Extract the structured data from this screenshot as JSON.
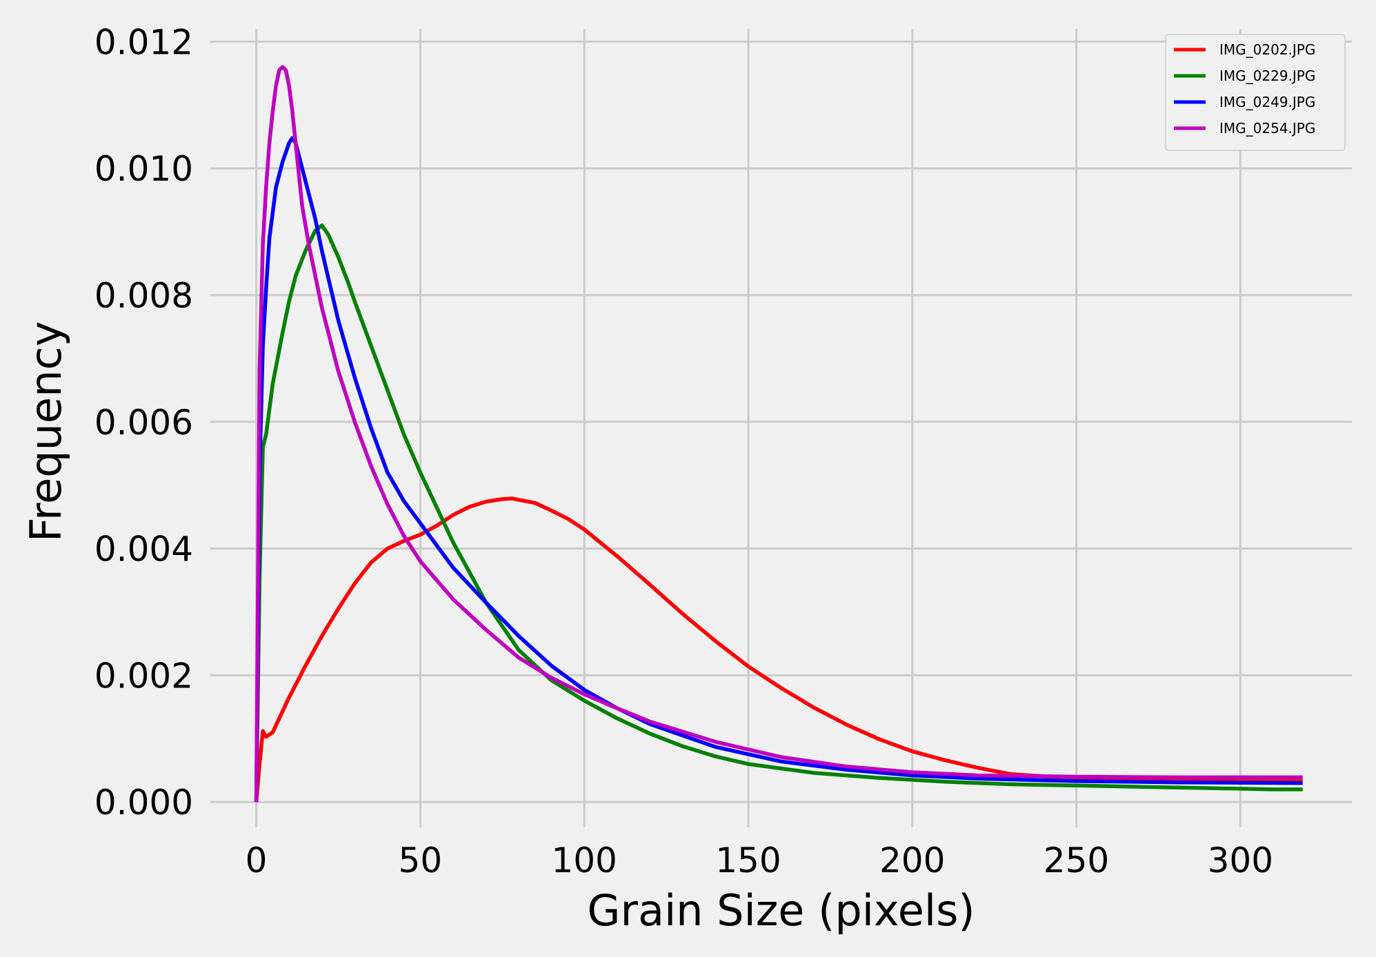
{
  "chart_data": {
    "type": "line",
    "title": "",
    "xlabel": "Grain Size (pixels)",
    "ylabel": "Frequency",
    "xlim": [
      -14,
      334
    ],
    "ylim": [
      -0.0004,
      0.0122
    ],
    "xticks": [
      0,
      50,
      100,
      150,
      200,
      250,
      300
    ],
    "xtick_labels": [
      "0",
      "50",
      "100",
      "150",
      "200",
      "250",
      "300"
    ],
    "yticks": [
      0.0,
      0.002,
      0.004,
      0.006,
      0.008,
      0.01,
      0.012
    ],
    "ytick_labels": [
      "0.000",
      "0.002",
      "0.004",
      "0.006",
      "0.008",
      "0.010",
      "0.012"
    ],
    "grid": true,
    "legend_position": "top-right",
    "series": [
      {
        "name": "IMG_0202.JPG",
        "color": "#ff0000",
        "x": [
          0,
          1,
          2,
          3,
          5,
          10,
          15,
          20,
          25,
          30,
          35,
          40,
          45,
          50,
          55,
          60,
          65,
          70,
          75,
          78,
          80,
          85,
          90,
          95,
          100,
          110,
          120,
          130,
          140,
          150,
          160,
          170,
          180,
          190,
          200,
          210,
          220,
          230,
          250,
          270,
          290,
          300,
          310,
          319
        ],
        "y": [
          0.0,
          0.0006,
          0.00112,
          0.00103,
          0.0011,
          0.00165,
          0.00215,
          0.00262,
          0.00305,
          0.00345,
          0.00378,
          0.004,
          0.00412,
          0.00422,
          0.00436,
          0.00453,
          0.00466,
          0.00474,
          0.00478,
          0.00479,
          0.00477,
          0.00472,
          0.0046,
          0.00447,
          0.0043,
          0.00388,
          0.00343,
          0.00297,
          0.00254,
          0.00214,
          0.0018,
          0.00149,
          0.00122,
          0.00099,
          0.0008,
          0.00066,
          0.00054,
          0.00044,
          0.00037,
          0.00035,
          0.00034,
          0.00033,
          0.00033,
          0.00033
        ]
      },
      {
        "name": "IMG_0229.JPG",
        "color": "#008000",
        "x": [
          0,
          1,
          2,
          3,
          5,
          8,
          10,
          12,
          15,
          18,
          20,
          22,
          25,
          28,
          30,
          35,
          40,
          45,
          50,
          60,
          70,
          80,
          90,
          100,
          110,
          120,
          130,
          140,
          150,
          170,
          190,
          210,
          230,
          250,
          270,
          290,
          310,
          319
        ],
        "y": [
          0.0,
          0.0035,
          0.0056,
          0.0058,
          0.0066,
          0.0074,
          0.0079,
          0.0083,
          0.0087,
          0.00902,
          0.0091,
          0.00895,
          0.0086,
          0.0082,
          0.0079,
          0.0072,
          0.0065,
          0.0058,
          0.0052,
          0.0041,
          0.00315,
          0.0024,
          0.00192,
          0.0016,
          0.00132,
          0.00108,
          0.00088,
          0.00072,
          0.0006,
          0.00046,
          0.00038,
          0.00032,
          0.00028,
          0.00026,
          0.00024,
          0.00022,
          0.0002,
          0.0002
        ]
      },
      {
        "name": "IMG_0249.JPG",
        "color": "#0000ff",
        "x": [
          0,
          1,
          2,
          3,
          4,
          6,
          8,
          10,
          11,
          12,
          13,
          15,
          18,
          20,
          25,
          30,
          35,
          40,
          45,
          50,
          60,
          70,
          80,
          90,
          100,
          110,
          120,
          140,
          160,
          180,
          200,
          220,
          250,
          280,
          319
        ],
        "y": [
          0.0,
          0.0052,
          0.0072,
          0.0081,
          0.0089,
          0.0097,
          0.0101,
          0.0104,
          0.01048,
          0.0104,
          0.0102,
          0.0098,
          0.0092,
          0.0087,
          0.0076,
          0.0067,
          0.0059,
          0.0052,
          0.00475,
          0.0044,
          0.0037,
          0.00315,
          0.00262,
          0.00215,
          0.00177,
          0.00148,
          0.00123,
          0.00087,
          0.00064,
          0.00051,
          0.00042,
          0.00037,
          0.00033,
          0.00031,
          0.0003
        ]
      },
      {
        "name": "IMG_0254.JPG",
        "color": "#bf00bf",
        "x": [
          0,
          1,
          2,
          3,
          4,
          5,
          6,
          7,
          8,
          9,
          10,
          11,
          12,
          13,
          14,
          16,
          18,
          20,
          25,
          30,
          35,
          40,
          45,
          50,
          60,
          70,
          80,
          90,
          100,
          110,
          120,
          140,
          160,
          180,
          200,
          220,
          250,
          280,
          319
        ],
        "y": [
          0.0,
          0.0068,
          0.0088,
          0.0097,
          0.0104,
          0.0109,
          0.0113,
          0.01155,
          0.0116,
          0.01155,
          0.0113,
          0.0109,
          0.0104,
          0.0099,
          0.0094,
          0.0088,
          0.0083,
          0.0078,
          0.0068,
          0.006,
          0.0053,
          0.0047,
          0.0042,
          0.0038,
          0.0032,
          0.00272,
          0.00228,
          0.00196,
          0.0017,
          0.00148,
          0.00127,
          0.00095,
          0.00071,
          0.00056,
          0.00047,
          0.00042,
          0.0004,
          0.00039,
          0.00039
        ]
      }
    ]
  }
}
